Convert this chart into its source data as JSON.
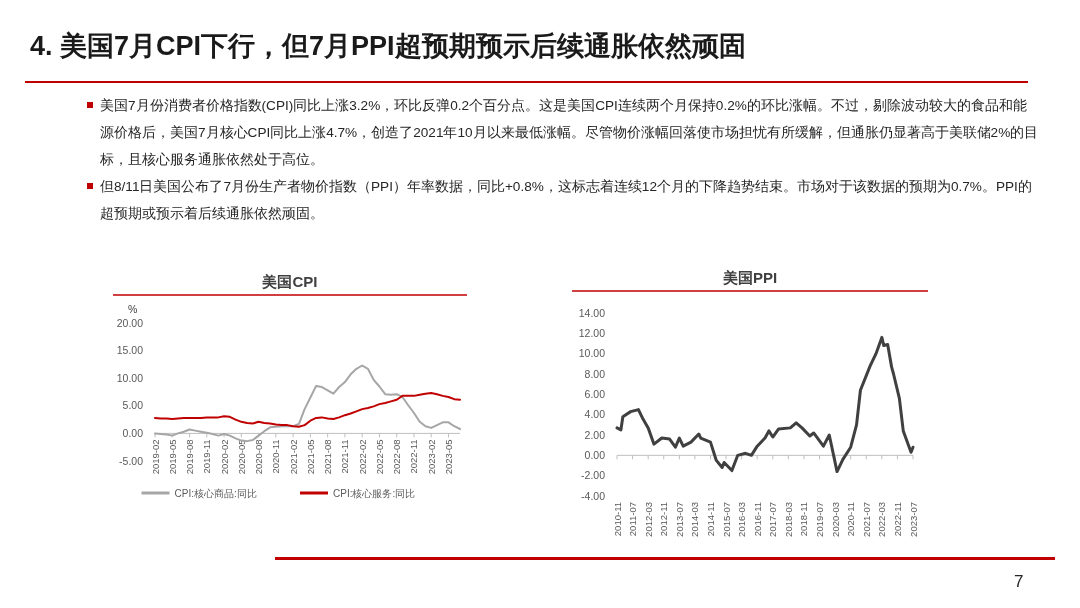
{
  "chart_data": [
    {
      "type": "line",
      "title": "美国CPI",
      "ylabel": "%",
      "annotations": [
        "4. 美国7月CPI下行，但7月PPI超预期预示后续通胀依然顽固",
        "美国7月份消费者价格指数(CPI)同比上涨3.2%，环比反弹0.2个百分点。这是美国CPI连续两个月保持0.2%的环比涨幅。不过，剔除波动较大的食品和能源价格后，美国7月核心CPI同比上涨4.7%，创造了2021年10月以来最低涨幅。尽管物价涨幅回落使市场担忧有所缓解，但通胀仍显著高于美联储2%的目标，且核心服务通胀依然处于高位。",
        "但8/11日美国公布了7月份生产者物价指数（PPI）年率数据，同比+0.8%，这标志着连续12个月的下降趋势结束。市场对于该数据的预期为0.7%。PPI的超预期或预示着后续通胀依然顽固。",
        "7"
      ],
      "x": [
        "2019-02",
        "2019-03",
        "2019-04",
        "2019-05",
        "2019-06",
        "2019-07",
        "2019-08",
        "2019-09",
        "2019-10",
        "2019-11",
        "2019-12",
        "2020-01",
        "2020-02",
        "2020-03",
        "2020-04",
        "2020-05",
        "2020-06",
        "2020-07",
        "2020-08",
        "2020-09",
        "2020-10",
        "2020-11",
        "2020-12",
        "2021-01",
        "2021-02",
        "2021-03",
        "2021-04",
        "2021-05",
        "2021-06",
        "2021-07",
        "2021-08",
        "2021-09",
        "2021-10",
        "2021-11",
        "2021-12",
        "2022-01",
        "2022-02",
        "2022-03",
        "2022-04",
        "2022-05",
        "2022-06",
        "2022-07",
        "2022-08",
        "2022-09",
        "2022-10",
        "2022-11",
        "2022-12",
        "2023-01",
        "2023-02",
        "2023-03",
        "2023-04",
        "2023-05",
        "2023-06",
        "2023-07"
      ],
      "xlim": [
        "2019-02",
        "2023-07"
      ],
      "xticks": [
        "2019-02",
        "2019-05",
        "2019-08",
        "2019-11",
        "2020-02",
        "2020-05",
        "2020-08",
        "2020-11",
        "2021-02",
        "2021-05",
        "2021-08",
        "2021-11",
        "2022-02",
        "2022-05",
        "2022-08",
        "2022-11",
        "2023-02",
        "2023-05"
      ],
      "ylim": [
        -5,
        20
      ],
      "yticks": [
        {
          "value": 20,
          "label": "20.00"
        },
        {
          "value": 15,
          "label": "15.00"
        },
        {
          "value": 10,
          "label": "10.00"
        },
        {
          "value": 5,
          "label": "5.00"
        },
        {
          "value": 0,
          "label": "0.00"
        },
        {
          "value": -5,
          "label": "-5.00"
        }
      ],
      "legend": "bottom",
      "series": [
        {
          "name": "CPI:核心商品:同比",
          "color": "#a6a6a6",
          "values": [
            0.0,
            -0.1,
            -0.2,
            -0.4,
            0.0,
            0.3,
            0.7,
            0.5,
            0.3,
            0.1,
            -0.1,
            -0.4,
            -0.1,
            -0.4,
            -0.9,
            -1.3,
            -1.4,
            -1.2,
            -0.4,
            0.4,
            1.1,
            1.2,
            1.3,
            1.3,
            1.3,
            1.7,
            4.4,
            6.5,
            8.6,
            8.4,
            7.8,
            7.2,
            8.4,
            9.3,
            10.7,
            11.7,
            12.3,
            11.7,
            9.7,
            8.5,
            7.1,
            7.0,
            7.1,
            6.6,
            5.1,
            3.7,
            2.1,
            1.3,
            1.0,
            1.5,
            2.0,
            2.0,
            1.3,
            0.8
          ]
        },
        {
          "name": "CPI:核心服务:同比",
          "color": "#c00000",
          "values": [
            2.8,
            2.7,
            2.7,
            2.6,
            2.7,
            2.8,
            2.8,
            2.8,
            2.8,
            2.9,
            2.9,
            2.9,
            3.1,
            3.0,
            2.5,
            2.1,
            1.9,
            1.8,
            2.1,
            1.9,
            1.8,
            1.6,
            1.5,
            1.5,
            1.3,
            1.2,
            1.5,
            2.3,
            2.8,
            2.9,
            2.7,
            2.6,
            2.9,
            3.3,
            3.6,
            4.0,
            4.4,
            4.6,
            4.9,
            5.3,
            5.5,
            5.8,
            6.1,
            6.8,
            6.8,
            6.8,
            7.0,
            7.2,
            7.3,
            7.1,
            6.8,
            6.6,
            6.2,
            6.1
          ]
        }
      ]
    },
    {
      "type": "line",
      "title": "美国PPI",
      "x": [
        "2010-11",
        "2011-01",
        "2011-02",
        "2011-06",
        "2011-10",
        "2011-12",
        "2012-03",
        "2012-06",
        "2012-10",
        "2013-02",
        "2013-05",
        "2013-07",
        "2013-09",
        "2014-01",
        "2014-05",
        "2014-06",
        "2014-11",
        "2015-02",
        "2015-05",
        "2015-06",
        "2015-10",
        "2016-01",
        "2016-05",
        "2016-08",
        "2016-11",
        "2017-03",
        "2017-05",
        "2017-07",
        "2017-10",
        "2018-04",
        "2018-07",
        "2018-10",
        "2019-02",
        "2019-04",
        "2019-09",
        "2019-12",
        "2020-04",
        "2020-07",
        "2020-11",
        "2021-02",
        "2021-04",
        "2021-09",
        "2021-12",
        "2022-03",
        "2022-04",
        "2022-06",
        "2022-08",
        "2022-09",
        "2022-12",
        "2023-02",
        "2023-06",
        "2023-07"
      ],
      "xlim": [
        "2010-11",
        "2023-07"
      ],
      "xticks": [
        "2010-11",
        "2011-07",
        "2012-03",
        "2012-11",
        "2013-07",
        "2014-03",
        "2014-11",
        "2015-07",
        "2016-03",
        "2016-11",
        "2017-07",
        "2018-03",
        "2018-11",
        "2019-07",
        "2020-03",
        "2020-11",
        "2021-07",
        "2022-03",
        "2022-11",
        "2023-07"
      ],
      "ylim": [
        -4,
        14
      ],
      "yticks": [
        {
          "value": 14,
          "label": "14.00"
        },
        {
          "value": 12,
          "label": "12.00"
        },
        {
          "value": 10,
          "label": "10.00"
        },
        {
          "value": 8,
          "label": "8.00"
        },
        {
          "value": 6,
          "label": "6.00"
        },
        {
          "value": 4,
          "label": "4.00"
        },
        {
          "value": 2,
          "label": "2.00"
        },
        {
          "value": 0,
          "label": "0.00"
        },
        {
          "value": -2,
          "label": "-2.00"
        },
        {
          "value": -4,
          "label": "-4.00"
        }
      ],
      "series": [
        {
          "color": "#404040",
          "values": [
            2.7,
            2.5,
            3.8,
            4.3,
            4.5,
            3.7,
            2.7,
            1.1,
            1.7,
            1.6,
            0.8,
            1.7,
            0.9,
            1.3,
            2.1,
            1.7,
            1.3,
            -0.5,
            -1.2,
            -0.7,
            -1.5,
            0.0,
            0.2,
            0.0,
            0.9,
            1.7,
            2.4,
            1.8,
            2.6,
            2.7,
            3.2,
            2.7,
            1.9,
            2.2,
            0.9,
            2.0,
            -1.6,
            -0.4,
            0.8,
            3.0,
            6.4,
            8.8,
            10.0,
            11.6,
            10.8,
            10.9,
            8.7,
            8.0,
            5.6,
            2.4,
            0.3,
            0.8
          ]
        }
      ]
    }
  ]
}
